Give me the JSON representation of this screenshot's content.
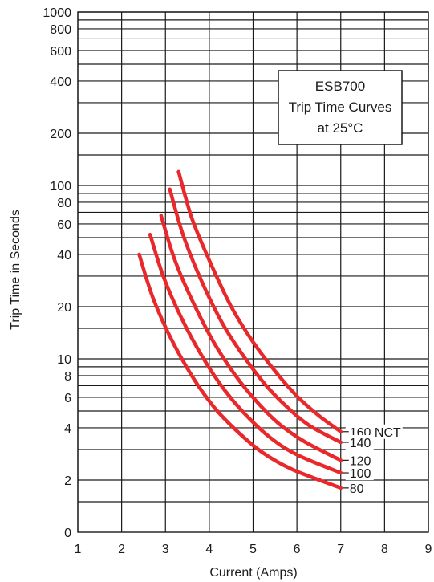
{
  "chart_data": {
    "type": "line",
    "title": [
      "ESB700",
      "Trip Time Curves",
      "at 25°C"
    ],
    "xlabel": "Current (Amps)",
    "ylabel": "Trip Time in Seconds",
    "xlim": [
      1,
      9
    ],
    "x_ticks": [
      "1",
      "2",
      "3",
      "4",
      "5",
      "6",
      "7",
      "8",
      "9"
    ],
    "y_ticks": [
      {
        "label": "0",
        "value": 0
      },
      {
        "label": "2",
        "value": 2
      },
      {
        "label": "4",
        "value": 4
      },
      {
        "label": "6",
        "value": 6
      },
      {
        "label": "8",
        "value": 8
      },
      {
        "label": "10",
        "value": 10
      },
      {
        "label": "20",
        "value": 20
      },
      {
        "label": "40",
        "value": 40
      },
      {
        "label": "60",
        "value": 60
      },
      {
        "label": "80",
        "value": 80
      },
      {
        "label": "100",
        "value": 100
      },
      {
        "label": "200",
        "value": 200
      },
      {
        "label": "400",
        "value": 400
      },
      {
        "label": "600",
        "value": 600
      },
      {
        "label": "800",
        "value": 800
      },
      {
        "label": "1000",
        "value": 1000
      }
    ],
    "gridlines_y": [
      1.5,
      2,
      3,
      4,
      5,
      6,
      7,
      8,
      9,
      10,
      15,
      20,
      30,
      40,
      50,
      60,
      70,
      80,
      90,
      100,
      150,
      200,
      300,
      400,
      500,
      600,
      700,
      800,
      900,
      1000
    ],
    "grid": true,
    "line_color": "#e8282b",
    "series": [
      {
        "name": "160 NCT",
        "x": [
          3.3,
          3.6,
          4.0,
          4.5,
          5.0,
          5.5,
          6.0,
          6.5,
          7.0
        ],
        "y": [
          120,
          65,
          37,
          20,
          12.5,
          8.5,
          6.1,
          4.7,
          3.8
        ]
      },
      {
        "name": "140",
        "x": [
          3.1,
          3.4,
          3.8,
          4.3,
          4.8,
          5.3,
          5.8,
          6.3,
          7.0
        ],
        "y": [
          95,
          52,
          29,
          16,
          10.2,
          7.0,
          5.2,
          4.1,
          3.3
        ]
      },
      {
        "name": "120",
        "x": [
          2.9,
          3.2,
          3.6,
          4.1,
          4.6,
          5.1,
          5.6,
          6.2,
          7.0
        ],
        "y": [
          67,
          38,
          22,
          12.5,
          8.0,
          5.6,
          4.2,
          3.3,
          2.6
        ]
      },
      {
        "name": "100",
        "x": [
          2.65,
          2.95,
          3.35,
          3.85,
          4.35,
          4.85,
          5.4,
          6.0,
          7.0
        ],
        "y": [
          52,
          30,
          17.5,
          10.2,
          6.6,
          4.7,
          3.5,
          2.8,
          2.2
        ]
      },
      {
        "name": "80",
        "x": [
          2.4,
          2.7,
          3.1,
          3.6,
          4.1,
          4.6,
          5.2,
          5.9,
          7.0
        ],
        "y": [
          40,
          23,
          13.5,
          8.0,
          5.3,
          3.9,
          2.9,
          2.3,
          1.8
        ]
      }
    ]
  }
}
